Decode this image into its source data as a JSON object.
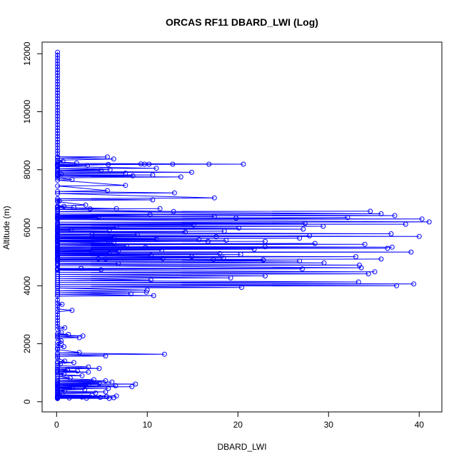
{
  "chart_data": {
    "type": "line",
    "title": "ORCAS RF11 DBARD_LWI (Log)",
    "xlabel": "DBARD_LWI",
    "ylabel": "Altitude (m)",
    "xlim": [
      -1.6,
      42.5
    ],
    "ylim": [
      -350,
      12400
    ],
    "x_ticks": [
      0,
      10,
      20,
      30,
      40
    ],
    "y_ticks": [
      0,
      2000,
      4000,
      6000,
      8000,
      10000,
      12000
    ],
    "grid": false,
    "legend": "none",
    "series_color": "#0000ff",
    "points": [
      [
        0.1,
        12050
      ],
      [
        0.1,
        11950
      ],
      [
        0.1,
        11850
      ],
      [
        0.1,
        11750
      ],
      [
        0.1,
        11650
      ],
      [
        0.1,
        11550
      ],
      [
        0.1,
        11450
      ],
      [
        0.1,
        11350
      ],
      [
        0.1,
        11250
      ],
      [
        0.1,
        11150
      ],
      [
        0.1,
        11050
      ],
      [
        0.1,
        10950
      ],
      [
        0.1,
        10850
      ],
      [
        0.1,
        10750
      ],
      [
        0.1,
        10650
      ],
      [
        0.1,
        10550
      ],
      [
        0.1,
        10450
      ],
      [
        0.1,
        10350
      ],
      [
        0.1,
        10250
      ],
      [
        0.1,
        10150
      ],
      [
        0.1,
        10050
      ],
      [
        0.1,
        9950
      ],
      [
        0.1,
        9850
      ],
      [
        0.1,
        9750
      ],
      [
        0.1,
        9650
      ],
      [
        0.1,
        9550
      ],
      [
        0.1,
        9450
      ],
      [
        0.1,
        9350
      ],
      [
        0.1,
        9250
      ],
      [
        0.1,
        9150
      ],
      [
        0.1,
        9050
      ],
      [
        0.1,
        8950
      ],
      [
        0.1,
        8850
      ],
      [
        0.1,
        8750
      ],
      [
        0.1,
        8650
      ],
      [
        0.1,
        8550
      ],
      [
        0.1,
        8450
      ],
      [
        5.6,
        8440
      ],
      [
        0.1,
        8400
      ],
      [
        6.3,
        8370
      ],
      [
        0.1,
        8330
      ],
      [
        0.7,
        8290
      ],
      [
        0.1,
        8270
      ],
      [
        2.2,
        8230
      ],
      [
        0.1,
        8220
      ],
      [
        20.6,
        8190
      ],
      [
        0.1,
        8180
      ],
      [
        16.8,
        8190
      ],
      [
        0.1,
        8170
      ],
      [
        12.8,
        8190
      ],
      [
        0.1,
        8160
      ],
      [
        10.2,
        8190
      ],
      [
        0.1,
        8160
      ],
      [
        9.7,
        8190
      ],
      [
        0.1,
        8150
      ],
      [
        9.3,
        8200
      ],
      [
        0.1,
        8140
      ],
      [
        5.7,
        8180
      ],
      [
        0.1,
        8130
      ],
      [
        3.4,
        8150
      ],
      [
        0.1,
        8110
      ],
      [
        11.0,
        8050
      ],
      [
        0.1,
        8040
      ],
      [
        5.9,
        8000
      ],
      [
        0.1,
        7990
      ],
      [
        4.9,
        7980
      ],
      [
        0.1,
        7950
      ],
      [
        14.9,
        7910
      ],
      [
        0.1,
        7900
      ],
      [
        7.6,
        7880
      ],
      [
        0.1,
        7860
      ],
      [
        0.5,
        7850
      ],
      [
        0.1,
        7830
      ],
      [
        10.6,
        7820
      ],
      [
        0.1,
        7810
      ],
      [
        8.4,
        7790
      ],
      [
        0.1,
        7770
      ],
      [
        13.7,
        7750
      ],
      [
        0.1,
        7720
      ],
      [
        1.7,
        7660
      ],
      [
        0.1,
        7640
      ],
      [
        7.6,
        7460
      ],
      [
        0.1,
        7440
      ],
      [
        5.6,
        7280
      ],
      [
        0.1,
        7250
      ],
      [
        13.0,
        7200
      ],
      [
        0.1,
        7180
      ],
      [
        17.4,
        7030
      ],
      [
        0.1,
        7000
      ],
      [
        10.6,
        6960
      ],
      [
        0.1,
        6940
      ],
      [
        0.3,
        6920
      ],
      [
        0.1,
        6900
      ],
      [
        3.2,
        6780
      ],
      [
        0.1,
        6750
      ],
      [
        0.8,
        6740
      ],
      [
        0.1,
        6720
      ],
      [
        1.9,
        6700
      ],
      [
        0.1,
        6700
      ],
      [
        6.6,
        6660
      ],
      [
        0.1,
        6640
      ],
      [
        11.4,
        6660
      ],
      [
        0.1,
        6640
      ],
      [
        3.7,
        6650
      ],
      [
        0.1,
        6630
      ],
      [
        12.9,
        6560
      ],
      [
        0.1,
        6550
      ],
      [
        34.6,
        6570
      ],
      [
        0.1,
        6560
      ],
      [
        35.8,
        6480
      ],
      [
        0.1,
        6470
      ],
      [
        37.3,
        6420
      ],
      [
        0.1,
        6400
      ],
      [
        10.3,
        6450
      ],
      [
        0.1,
        6430
      ],
      [
        17.4,
        6390
      ],
      [
        0.1,
        6380
      ],
      [
        4.6,
        6370
      ],
      [
        0.1,
        6350
      ],
      [
        19.8,
        6330
      ],
      [
        0.1,
        6310
      ],
      [
        32.1,
        6350
      ],
      [
        0.1,
        6330
      ],
      [
        40.3,
        6300
      ],
      [
        0.1,
        6280
      ],
      [
        41.1,
        6200
      ],
      [
        0.1,
        6190
      ],
      [
        27.4,
        6150
      ],
      [
        0.1,
        6130
      ],
      [
        38.5,
        6120
      ],
      [
        0.1,
        6110
      ],
      [
        15.1,
        6100
      ],
      [
        0.1,
        6080
      ],
      [
        29.4,
        6050
      ],
      [
        0.1,
        6030
      ],
      [
        6.6,
        6020
      ],
      [
        0.1,
        6000
      ],
      [
        20.1,
        5990
      ],
      [
        0.1,
        5970
      ],
      [
        27.2,
        5950
      ],
      [
        0.1,
        5940
      ],
      [
        1.6,
        5930
      ],
      [
        0.1,
        5910
      ],
      [
        5.8,
        5890
      ],
      [
        0.1,
        5870
      ],
      [
        18.5,
        5880
      ],
      [
        0.1,
        5860
      ],
      [
        14.2,
        5850
      ],
      [
        0.1,
        5830
      ],
      [
        36.9,
        5790
      ],
      [
        0.1,
        5780
      ],
      [
        3.9,
        5770
      ],
      [
        0.1,
        5750
      ],
      [
        8.9,
        5760
      ],
      [
        0.1,
        5740
      ],
      [
        40.0,
        5700
      ],
      [
        0.1,
        5690
      ],
      [
        27.9,
        5720
      ],
      [
        0.1,
        5700
      ],
      [
        17.6,
        5690
      ],
      [
        0.1,
        5670
      ],
      [
        6.3,
        5660
      ],
      [
        0.1,
        5640
      ],
      [
        26.8,
        5640
      ],
      [
        0.1,
        5620
      ],
      [
        11.0,
        5600
      ],
      [
        0.1,
        5580
      ],
      [
        15.7,
        5590
      ],
      [
        0.1,
        5570
      ],
      [
        18.7,
        5570
      ],
      [
        0.1,
        5550
      ],
      [
        5.7,
        5550
      ],
      [
        0.1,
        5530
      ],
      [
        16.7,
        5530
      ],
      [
        0.1,
        5510
      ],
      [
        23.0,
        5530
      ],
      [
        0.1,
        5510
      ],
      [
        6.3,
        5470
      ],
      [
        0.1,
        5450
      ],
      [
        28.5,
        5460
      ],
      [
        0.1,
        5440
      ],
      [
        34.0,
        5430
      ],
      [
        0.1,
        5410
      ],
      [
        7.7,
        5380
      ],
      [
        0.1,
        5360
      ],
      [
        37.0,
        5330
      ],
      [
        0.1,
        5310
      ],
      [
        23.0,
        5340
      ],
      [
        0.1,
        5320
      ],
      [
        9.8,
        5320
      ],
      [
        0.1,
        5300
      ],
      [
        36.5,
        5290
      ],
      [
        0.1,
        5270
      ],
      [
        21.8,
        5260
      ],
      [
        0.1,
        5240
      ],
      [
        11.6,
        5230
      ],
      [
        0.1,
        5210
      ],
      [
        3.9,
        5200
      ],
      [
        0.1,
        5180
      ],
      [
        6.8,
        5190
      ],
      [
        0.1,
        5170
      ],
      [
        39.1,
        5160
      ],
      [
        0.1,
        5140
      ],
      [
        5.8,
        5130
      ],
      [
        0.1,
        5110
      ],
      [
        18.0,
        5110
      ],
      [
        0.1,
        5090
      ],
      [
        20.3,
        5080
      ],
      [
        0.1,
        5060
      ],
      [
        10.4,
        5050
      ],
      [
        0.1,
        5030
      ],
      [
        33.0,
        5000
      ],
      [
        0.1,
        4980
      ],
      [
        14.9,
        5000
      ],
      [
        0.1,
        4980
      ],
      [
        18.4,
        4960
      ],
      [
        0.1,
        4940
      ],
      [
        11.7,
        4940
      ],
      [
        0.1,
        4920
      ],
      [
        5.4,
        4920
      ],
      [
        0.1,
        4900
      ],
      [
        35.8,
        4920
      ],
      [
        0.1,
        4900
      ],
      [
        17.3,
        4900
      ],
      [
        0.1,
        4880
      ],
      [
        22.8,
        4890
      ],
      [
        0.1,
        4870
      ],
      [
        4.6,
        4930
      ],
      [
        0.1,
        4910
      ],
      [
        26.8,
        4850
      ],
      [
        0.1,
        4830
      ],
      [
        29.5,
        4790
      ],
      [
        0.1,
        4770
      ],
      [
        6.8,
        4760
      ],
      [
        0.1,
        4740
      ],
      [
        33.4,
        4710
      ],
      [
        0.1,
        4690
      ],
      [
        33.6,
        4620
      ],
      [
        0.1,
        4600
      ],
      [
        2.7,
        4600
      ],
      [
        0.1,
        4580
      ],
      [
        27.1,
        4580
      ],
      [
        0.1,
        4560
      ],
      [
        4.9,
        4550
      ],
      [
        0.1,
        4530
      ],
      [
        35.1,
        4480
      ],
      [
        0.1,
        4460
      ],
      [
        34.4,
        4410
      ],
      [
        0.1,
        4390
      ],
      [
        23.0,
        4340
      ],
      [
        0.1,
        4320
      ],
      [
        19.2,
        4270
      ],
      [
        0.1,
        4250
      ],
      [
        10.4,
        4200
      ],
      [
        0.1,
        4180
      ],
      [
        33.3,
        4130
      ],
      [
        0.1,
        4110
      ],
      [
        39.4,
        4060
      ],
      [
        0.1,
        4040
      ],
      [
        37.5,
        4000
      ],
      [
        0.1,
        3980
      ],
      [
        20.4,
        3940
      ],
      [
        0.1,
        3920
      ],
      [
        10.0,
        3850
      ],
      [
        0.1,
        3830
      ],
      [
        9.9,
        3780
      ],
      [
        0.1,
        3760
      ],
      [
        8.2,
        3720
      ],
      [
        0.1,
        3700
      ],
      [
        10.7,
        3660
      ],
      [
        0.1,
        3640
      ],
      [
        0.1,
        3500
      ],
      [
        0.1,
        3400
      ],
      [
        0.6,
        3360
      ],
      [
        0.1,
        3300
      ],
      [
        0.1,
        3200
      ],
      [
        1.7,
        3150
      ],
      [
        0.1,
        3100
      ],
      [
        0.1,
        3000
      ],
      [
        0.1,
        2900
      ],
      [
        0.1,
        2800
      ],
      [
        0.1,
        2700
      ],
      [
        0.1,
        2600
      ],
      [
        0.9,
        2550
      ],
      [
        0.1,
        2500
      ],
      [
        0.5,
        2400
      ],
      [
        0.1,
        2350
      ],
      [
        1.3,
        2320
      ],
      [
        0.1,
        2300
      ],
      [
        2.9,
        2270
      ],
      [
        0.1,
        2250
      ],
      [
        2.5,
        2210
      ],
      [
        0.1,
        2200
      ],
      [
        0.5,
        2100
      ],
      [
        0.1,
        2050
      ],
      [
        0.5,
        2000
      ],
      [
        0.1,
        1950
      ],
      [
        0.8,
        1900
      ],
      [
        0.1,
        1850
      ],
      [
        0.1,
        1800
      ],
      [
        2.5,
        1700
      ],
      [
        0.1,
        1680
      ],
      [
        11.9,
        1640
      ],
      [
        0.1,
        1620
      ],
      [
        5.4,
        1580
      ],
      [
        0.1,
        1560
      ],
      [
        0.1,
        1500
      ],
      [
        0.9,
        1400
      ],
      [
        0.1,
        1380
      ],
      [
        1.9,
        1350
      ],
      [
        0.1,
        1330
      ],
      [
        0.4,
        1300
      ],
      [
        0.1,
        1250
      ],
      [
        3.5,
        1200
      ],
      [
        0.1,
        1180
      ],
      [
        4.7,
        1150
      ],
      [
        0.1,
        1130
      ],
      [
        1.2,
        1100
      ],
      [
        0.1,
        1080
      ],
      [
        2.3,
        1060
      ],
      [
        0.1,
        1040
      ],
      [
        3.5,
        1020
      ],
      [
        0.1,
        1000
      ],
      [
        0.8,
        960
      ],
      [
        0.1,
        940
      ],
      [
        2.8,
        900
      ],
      [
        0.1,
        880
      ],
      [
        1.5,
        820
      ],
      [
        0.1,
        800
      ],
      [
        4.1,
        760
      ],
      [
        0.1,
        740
      ],
      [
        5.4,
        720
      ],
      [
        0.1,
        700
      ],
      [
        6.1,
        680
      ],
      [
        0.1,
        660
      ],
      [
        4.7,
        640
      ],
      [
        0.1,
        620
      ],
      [
        8.7,
        610
      ],
      [
        0.1,
        590
      ],
      [
        3.5,
        580
      ],
      [
        0.1,
        560
      ],
      [
        6.5,
        550
      ],
      [
        0.1,
        530
      ],
      [
        8.3,
        520
      ],
      [
        0.1,
        500
      ],
      [
        1.7,
        490
      ],
      [
        0.1,
        470
      ],
      [
        5.7,
        460
      ],
      [
        0.1,
        440
      ],
      [
        3.1,
        420
      ],
      [
        0.1,
        400
      ],
      [
        0.9,
        380
      ],
      [
        0.1,
        360
      ],
      [
        5.4,
        340
      ],
      [
        0.1,
        320
      ],
      [
        4.3,
        300
      ],
      [
        0.1,
        280
      ],
      [
        0.6,
        260
      ],
      [
        0.1,
        240
      ],
      [
        3.9,
        220
      ],
      [
        0.1,
        210
      ],
      [
        6.6,
        200
      ],
      [
        0.1,
        190
      ],
      [
        5.5,
        180
      ],
      [
        0.1,
        170
      ],
      [
        2.8,
        160
      ],
      [
        0.1,
        155
      ],
      [
        4.8,
        150
      ],
      [
        0.1,
        145
      ],
      [
        6.3,
        140
      ],
      [
        0.1,
        135
      ],
      [
        1.4,
        130
      ],
      [
        0.1,
        125
      ],
      [
        3.3,
        120
      ],
      [
        0.1,
        118
      ],
      [
        5.8,
        115
      ],
      [
        0.1,
        112
      ],
      [
        0.1,
        110
      ]
    ]
  }
}
